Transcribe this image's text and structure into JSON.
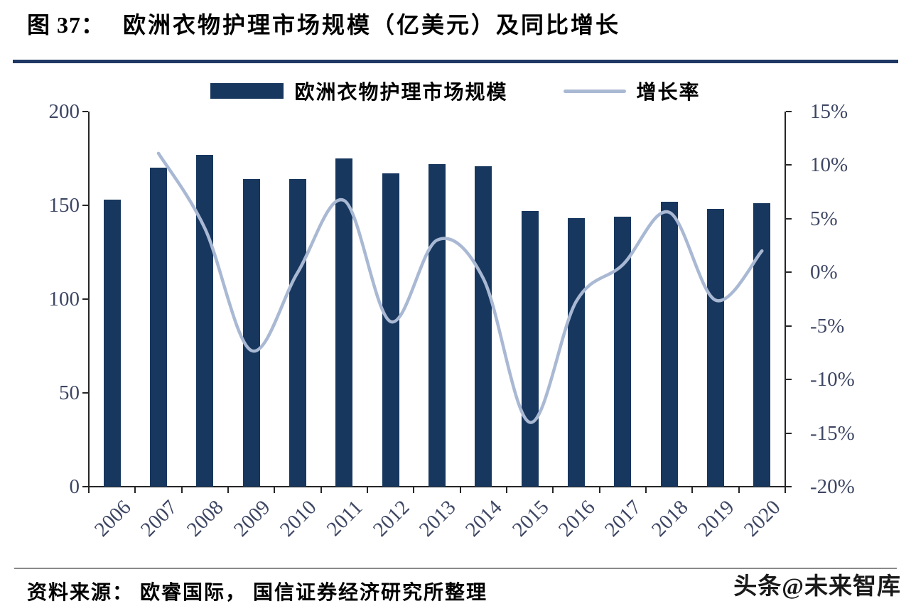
{
  "page": {
    "title_prefix": "图 37：",
    "title": "欧洲衣物护理市场规模（亿美元）及同比增长",
    "source_note": "资料来源： 欧睿国际， 国信证券经济研究所整理",
    "watermark": "头条@未来智库"
  },
  "colors": {
    "bar": "#17375E",
    "line": "#A9B8D3",
    "title_rule": "#1F3864",
    "axis_text": "#3D4663"
  },
  "chart_data": {
    "type": "bar",
    "subtype": "combo bar + smooth line, dual y-axes",
    "title": "欧洲衣物护理市场规模（亿美元）及同比增长",
    "categories": [
      "2006",
      "2007",
      "2008",
      "2009",
      "2010",
      "2011",
      "2012",
      "2013",
      "2014",
      "2015",
      "2016",
      "2017",
      "2018",
      "2019",
      "2020"
    ],
    "series": [
      {
        "name": "欧洲衣物护理市场规模",
        "type": "bar",
        "axis": "left",
        "color": "#17375E",
        "values": [
          153,
          170,
          177,
          164,
          164,
          175,
          167,
          172,
          171,
          147,
          143,
          144,
          152,
          148,
          151
        ]
      },
      {
        "name": "增长率",
        "type": "line",
        "axis": "right",
        "color": "#A9B8D3",
        "values": [
          null,
          11.1,
          4.1,
          -7.3,
          0.0,
          6.7,
          -4.6,
          3.0,
          -0.6,
          -14.0,
          -2.7,
          0.7,
          5.6,
          -2.6,
          2.0
        ]
      }
    ],
    "left_axis": {
      "min": 0,
      "max": 200,
      "tick_values": [
        200,
        150,
        100,
        50,
        0
      ],
      "tick_labels": [
        "200",
        "150",
        "100",
        "50",
        "0"
      ]
    },
    "right_axis": {
      "min": -20,
      "max": 15,
      "tick_values": [
        15,
        10,
        5,
        0,
        -5,
        -10,
        -15,
        -20
      ],
      "tick_labels": [
        "15%",
        "10%",
        "5%",
        "0%",
        "-5%",
        "-10%",
        "-15%",
        "-20%"
      ]
    },
    "legend_position": "top",
    "grid": false
  }
}
